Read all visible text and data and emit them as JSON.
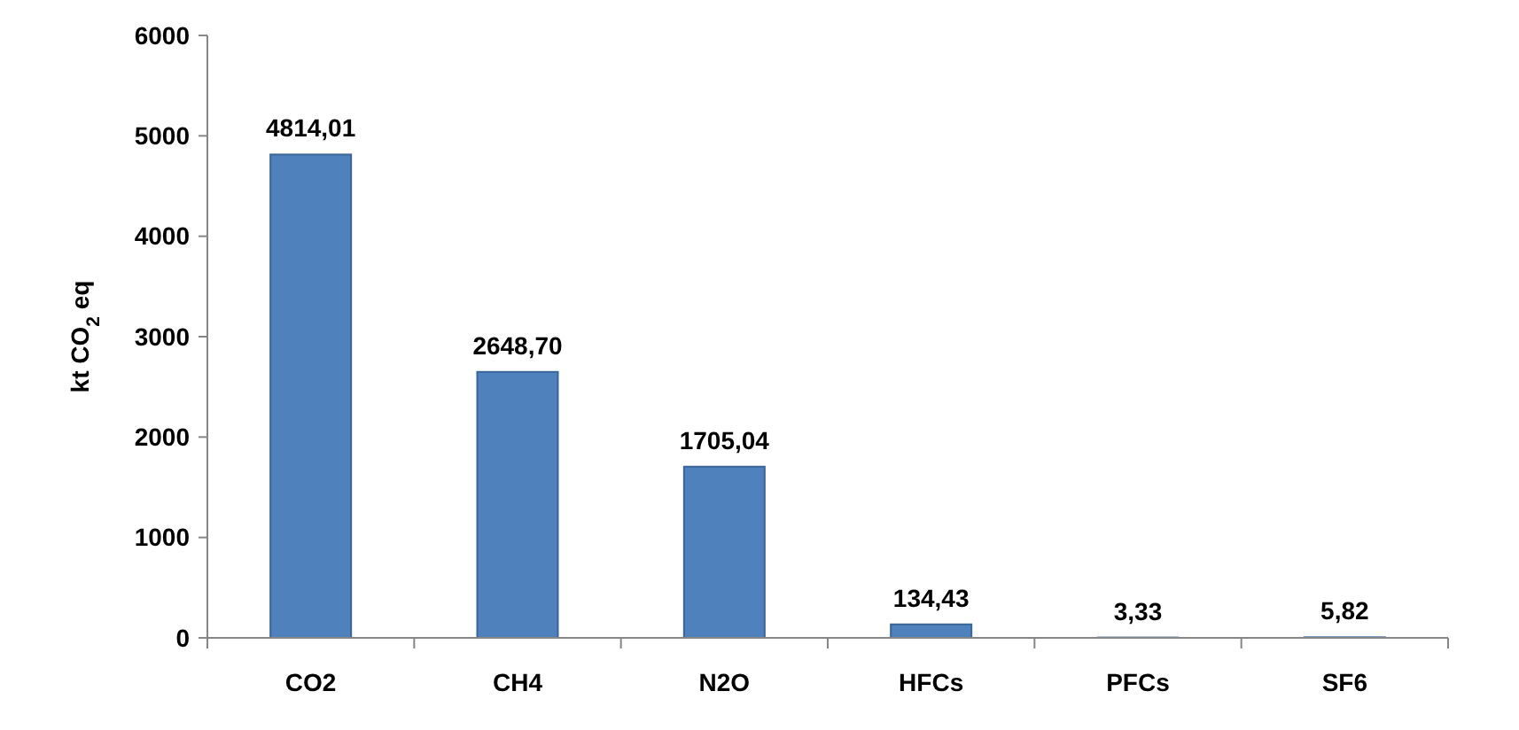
{
  "chart_data": {
    "type": "bar",
    "ylabel": "kt CO$_{2}$ eq",
    "categories": [
      "CO2",
      "CH4",
      "N2O",
      "HFCs",
      "PFCs",
      "SF6"
    ],
    "values": [
      4814.01,
      2648.7,
      1705.04,
      134.43,
      3.33,
      5.82
    ],
    "value_labels": [
      "4814,01",
      "2648,70",
      "1705,04",
      "134,43",
      "3,33",
      "5,82"
    ],
    "color": "#4f81bd",
    "ylim": [
      0,
      6000
    ],
    "yticks": [
      0,
      1000,
      2000,
      3000,
      4000,
      5000,
      6000
    ],
    "grid": false
  }
}
